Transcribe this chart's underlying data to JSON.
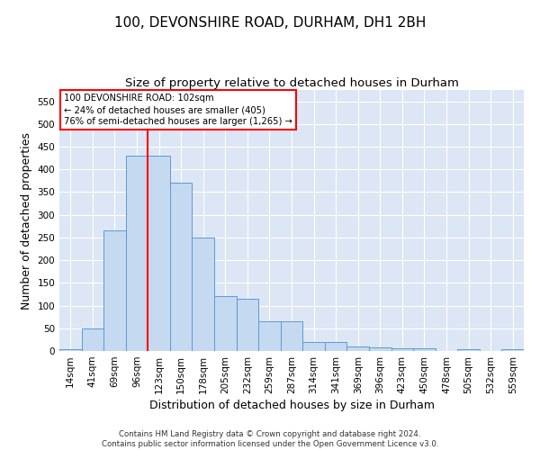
{
  "title": "100, DEVONSHIRE ROAD, DURHAM, DH1 2BH",
  "subtitle": "Size of property relative to detached houses in Durham",
  "xlabel": "Distribution of detached houses by size in Durham",
  "ylabel": "Number of detached properties",
  "bar_labels": [
    "14sqm",
    "41sqm",
    "69sqm",
    "96sqm",
    "123sqm",
    "150sqm",
    "178sqm",
    "205sqm",
    "232sqm",
    "259sqm",
    "287sqm",
    "314sqm",
    "341sqm",
    "369sqm",
    "396sqm",
    "423sqm",
    "450sqm",
    "478sqm",
    "505sqm",
    "532sqm",
    "559sqm"
  ],
  "bar_values": [
    3,
    50,
    265,
    430,
    430,
    370,
    250,
    120,
    115,
    65,
    65,
    20,
    20,
    10,
    8,
    5,
    5,
    0,
    3,
    0,
    3
  ],
  "bar_color": "#c5d9f1",
  "bar_edge_color": "#5b9bd5",
  "red_line_x": 3.5,
  "annotation_box_text": "100 DEVONSHIRE ROAD: 102sqm\n← 24% of detached houses are smaller (405)\n76% of semi-detached houses are larger (1,265) →",
  "ylim": [
    0,
    575
  ],
  "yticks": [
    0,
    50,
    100,
    150,
    200,
    250,
    300,
    350,
    400,
    450,
    500,
    550
  ],
  "footer_line1": "Contains HM Land Registry data © Crown copyright and database right 2024.",
  "footer_line2": "Contains public sector information licensed under the Open Government Licence v3.0.",
  "bg_color": "#dce6f5",
  "grid_color": "#ffffff",
  "title_fontsize": 11,
  "subtitle_fontsize": 9.5,
  "axis_label_fontsize": 9,
  "tick_fontsize": 7.5
}
